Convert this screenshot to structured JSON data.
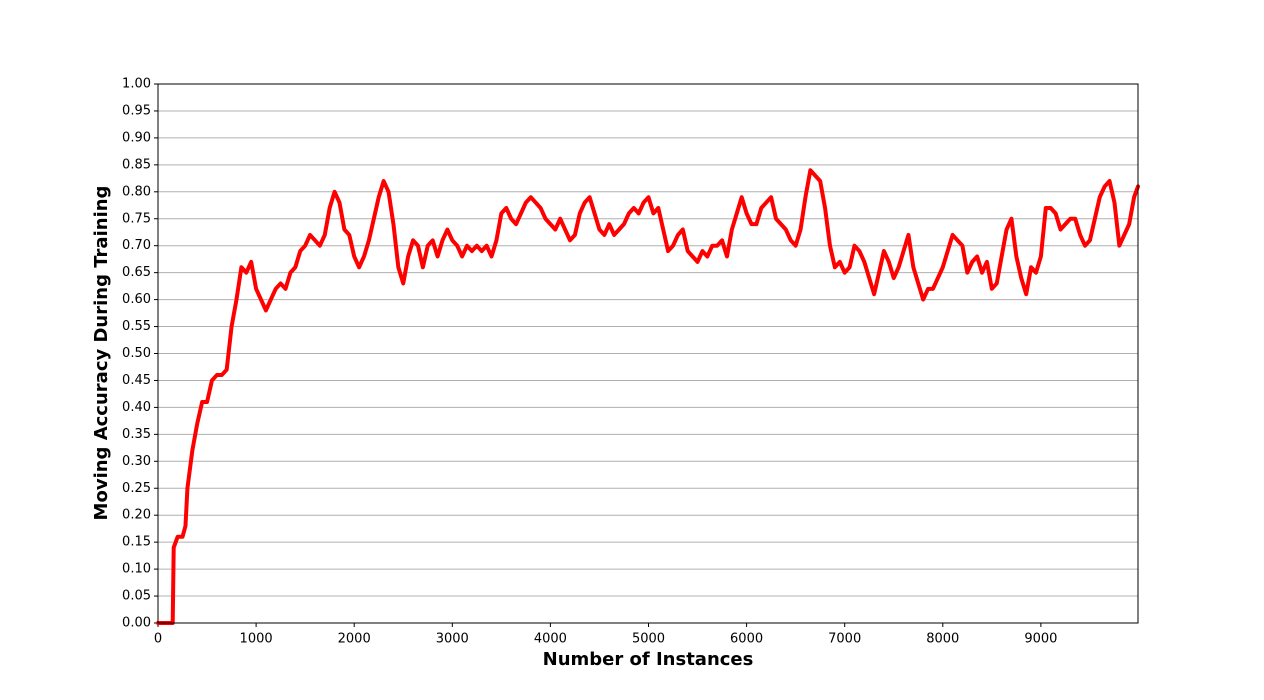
{
  "chart_data": {
    "type": "line",
    "xlabel": "Number of Instances",
    "ylabel": "Moving Accuracy During Training",
    "color": "#ff0000",
    "grid": true,
    "xlim": [
      0,
      9990
    ],
    "ylim": [
      0,
      1
    ],
    "xticks": [
      0,
      1000,
      2000,
      3000,
      4000,
      5000,
      6000,
      7000,
      8000,
      9000
    ],
    "yticks": [
      {
        "value": 0,
        "label": "0.00"
      },
      {
        "value": 0.05,
        "label": "0.05"
      },
      {
        "value": 0.1,
        "label": "0.10"
      },
      {
        "value": 0.15,
        "label": "0.15"
      },
      {
        "value": 0.2,
        "label": "0.20"
      },
      {
        "value": 0.25,
        "label": "0.25"
      },
      {
        "value": 0.3,
        "label": "0.30"
      },
      {
        "value": 0.35,
        "label": "0.35"
      },
      {
        "value": 0.4,
        "label": "0.40"
      },
      {
        "value": 0.45,
        "label": "0.45"
      },
      {
        "value": 0.5,
        "label": "0.50"
      },
      {
        "value": 0.55,
        "label": "0.55"
      },
      {
        "value": 0.6,
        "label": "0.60"
      },
      {
        "value": 0.65,
        "label": "0.65"
      },
      {
        "value": 0.7,
        "label": "0.70"
      },
      {
        "value": 0.75,
        "label": "0.75"
      },
      {
        "value": 0.8,
        "label": "0.80"
      },
      {
        "value": 0.85,
        "label": "0.85"
      },
      {
        "value": 0.9,
        "label": "0.90"
      },
      {
        "value": 0.95,
        "label": "0.95"
      },
      {
        "value": 1,
        "label": "1.00"
      }
    ],
    "x": [
      0,
      150,
      160,
      200,
      250,
      280,
      300,
      350,
      400,
      450,
      500,
      550,
      600,
      650,
      700,
      750,
      800,
      850,
      900,
      950,
      1000,
      1050,
      1100,
      1150,
      1200,
      1250,
      1300,
      1350,
      1400,
      1450,
      1500,
      1550,
      1600,
      1650,
      1700,
      1750,
      1800,
      1850,
      1900,
      1950,
      2000,
      2050,
      2100,
      2150,
      2200,
      2250,
      2300,
      2350,
      2400,
      2450,
      2500,
      2550,
      2600,
      2650,
      2700,
      2750,
      2800,
      2850,
      2900,
      2950,
      3000,
      3050,
      3100,
      3150,
      3200,
      3250,
      3300,
      3350,
      3400,
      3450,
      3500,
      3550,
      3600,
      3650,
      3700,
      3750,
      3800,
      3850,
      3900,
      3950,
      4000,
      4050,
      4100,
      4150,
      4200,
      4250,
      4300,
      4350,
      4400,
      4450,
      4500,
      4550,
      4600,
      4650,
      4700,
      4750,
      4800,
      4850,
      4900,
      4950,
      5000,
      5050,
      5100,
      5150,
      5200,
      5250,
      5300,
      5350,
      5400,
      5450,
      5500,
      5550,
      5600,
      5650,
      5700,
      5750,
      5800,
      5850,
      5900,
      5950,
      6000,
      6050,
      6100,
      6150,
      6200,
      6250,
      6300,
      6350,
      6400,
      6450,
      6500,
      6550,
      6600,
      6650,
      6700,
      6750,
      6800,
      6850,
      6900,
      6950,
      7000,
      7050,
      7100,
      7150,
      7200,
      7250,
      7300,
      7350,
      7400,
      7450,
      7500,
      7550,
      7600,
      7650,
      7700,
      7750,
      7800,
      7850,
      7900,
      7950,
      8000,
      8050,
      8100,
      8150,
      8200,
      8250,
      8300,
      8350,
      8400,
      8450,
      8500,
      8550,
      8600,
      8650,
      8700,
      8750,
      8800,
      8850,
      8900,
      8950,
      9000,
      9050,
      9100,
      9150,
      9200,
      9250,
      9300,
      9350,
      9400,
      9450,
      9500,
      9550,
      9600,
      9650,
      9700,
      9750,
      9800,
      9850,
      9900,
      9950,
      9990
    ],
    "values": [
      0,
      0,
      0.14,
      0.16,
      0.16,
      0.18,
      0.25,
      0.32,
      0.37,
      0.41,
      0.41,
      0.45,
      0.46,
      0.46,
      0.47,
      0.55,
      0.6,
      0.66,
      0.65,
      0.67,
      0.62,
      0.6,
      0.58,
      0.6,
      0.62,
      0.63,
      0.62,
      0.65,
      0.66,
      0.69,
      0.7,
      0.72,
      0.71,
      0.7,
      0.72,
      0.77,
      0.8,
      0.78,
      0.73,
      0.72,
      0.68,
      0.66,
      0.68,
      0.71,
      0.75,
      0.79,
      0.82,
      0.8,
      0.74,
      0.66,
      0.63,
      0.68,
      0.71,
      0.7,
      0.66,
      0.7,
      0.71,
      0.68,
      0.71,
      0.73,
      0.71,
      0.7,
      0.68,
      0.7,
      0.69,
      0.7,
      0.69,
      0.7,
      0.68,
      0.71,
      0.76,
      0.77,
      0.75,
      0.74,
      0.76,
      0.78,
      0.79,
      0.78,
      0.77,
      0.75,
      0.74,
      0.73,
      0.75,
      0.73,
      0.71,
      0.72,
      0.76,
      0.78,
      0.79,
      0.76,
      0.73,
      0.72,
      0.74,
      0.72,
      0.73,
      0.74,
      0.76,
      0.77,
      0.76,
      0.78,
      0.79,
      0.76,
      0.77,
      0.73,
      0.69,
      0.7,
      0.72,
      0.73,
      0.69,
      0.68,
      0.67,
      0.69,
      0.68,
      0.7,
      0.7,
      0.71,
      0.68,
      0.73,
      0.76,
      0.79,
      0.76,
      0.74,
      0.74,
      0.77,
      0.78,
      0.79,
      0.75,
      0.74,
      0.73,
      0.71,
      0.7,
      0.73,
      0.79,
      0.84,
      0.83,
      0.82,
      0.77,
      0.7,
      0.66,
      0.67,
      0.65,
      0.66,
      0.7,
      0.69,
      0.67,
      0.64,
      0.61,
      0.65,
      0.69,
      0.67,
      0.64,
      0.66,
      0.69,
      0.72,
      0.66,
      0.63,
      0.6,
      0.62,
      0.62,
      0.64,
      0.66,
      0.69,
      0.72,
      0.71,
      0.7,
      0.65,
      0.67,
      0.68,
      0.65,
      0.67,
      0.62,
      0.63,
      0.68,
      0.73,
      0.75,
      0.68,
      0.64,
      0.61,
      0.66,
      0.65,
      0.68,
      0.77,
      0.77,
      0.76,
      0.73,
      0.74,
      0.75,
      0.75,
      0.72,
      0.7,
      0.71,
      0.75,
      0.79,
      0.81,
      0.82,
      0.78,
      0.7,
      0.72,
      0.74,
      0.79,
      0.81
    ]
  }
}
